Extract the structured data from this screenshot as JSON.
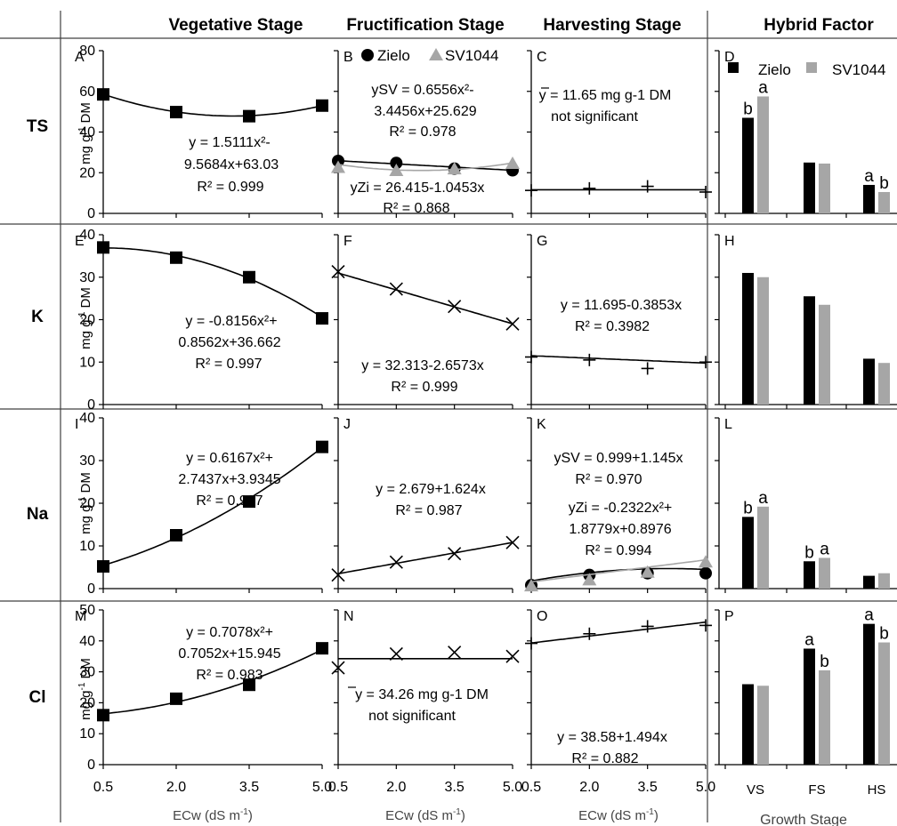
{
  "headers": {
    "columns": [
      "Vegetative Stage",
      "Fructification Stage",
      "Harvesting Stage",
      "Hybrid Factor"
    ],
    "rows": [
      "TS",
      "K",
      "Na",
      "Cl"
    ]
  },
  "axes": {
    "ylabel_main": "mg g",
    "ylabel_sup": "-1",
    "ylabel_tail": " DM",
    "xlabel_main": "ECw (dS m",
    "xlabel_sup": "-1",
    "xlabel_tail": ")",
    "x_ticks": [
      "0.5",
      "2.0",
      "3.5",
      "5.0"
    ],
    "hybrid_xlabel": "Growth Stage",
    "hybrid_ticks": [
      "VS",
      "FS",
      "HS"
    ]
  },
  "legend": {
    "zielo": "Zielo",
    "sv1044": "SV1044"
  },
  "colors": {
    "zielo": "#000000",
    "sv1044": "#a6a6a6",
    "axis": "#000000",
    "frame": "#404040"
  },
  "chart_data": [
    {
      "panel": "A",
      "row": "TS",
      "stage": "Vegetative Stage",
      "type": "scatter",
      "ylim": [
        0,
        80
      ],
      "yticks": [
        0,
        20,
        40,
        60,
        80
      ],
      "x": [
        0.5,
        2.0,
        3.5,
        5.0
      ],
      "series": [
        {
          "marker": "square",
          "values": [
            58.5,
            49.8,
            47.8,
            53.0
          ],
          "fit": "quad",
          "coef": [
            63.03,
            -9.5684,
            1.5111
          ]
        }
      ],
      "annotations": [
        "y = 1.5111x²-",
        "9.5684x+63.03",
        "R² = 0.999"
      ]
    },
    {
      "panel": "B",
      "row": "TS",
      "stage": "Fructification Stage",
      "type": "scatter",
      "ylim": [
        0,
        80
      ],
      "x": [
        0.5,
        2.0,
        3.5,
        5.0
      ],
      "series": [
        {
          "name": "Zielo",
          "marker": "circle",
          "values": [
            25.8,
            24.8,
            22.0,
            21.2
          ],
          "fit": "lin",
          "coef": [
            26.415,
            -1.0453
          ]
        },
        {
          "name": "SV1044",
          "marker": "triangle",
          "values": [
            22.5,
            21.0,
            21.8,
            24.5
          ],
          "fit": "quad",
          "coef": [
            25.629,
            -3.4456,
            0.6556
          ]
        }
      ],
      "annotations": [
        "ySV = 0.6556x²-",
        "3.4456x+25.629",
        "R² = 0.978",
        "yZi = 26.415-1.0453x",
        "R² = 0.868"
      ]
    },
    {
      "panel": "C",
      "row": "TS",
      "stage": "Harvesting Stage",
      "type": "scatter",
      "ylim": [
        0,
        80
      ],
      "x": [
        0.5,
        2.0,
        3.5,
        5.0
      ],
      "series": [
        {
          "marker": "plus",
          "values": [
            11.3,
            12.3,
            13.3,
            10.5
          ],
          "fit": "const",
          "coef": [
            11.65
          ]
        }
      ],
      "annotations": [
        "y = 11.65 mg g-1 DM",
        "not significant"
      ]
    },
    {
      "panel": "D",
      "row": "TS",
      "stage": "Hybrid Factor",
      "type": "bar",
      "ylim": [
        0,
        80
      ],
      "categories": [
        "VS",
        "FS",
        "HS"
      ],
      "series": [
        {
          "name": "Zielo",
          "values": [
            47.0,
            25.0,
            14.0
          ],
          "letters": [
            "b",
            "",
            "a"
          ]
        },
        {
          "name": "SV1044",
          "values": [
            57.5,
            24.5,
            10.5
          ],
          "letters": [
            "a",
            "",
            "b"
          ]
        }
      ]
    },
    {
      "panel": "E",
      "row": "K",
      "stage": "Vegetative Stage",
      "type": "scatter",
      "ylim": [
        0,
        40
      ],
      "yticks": [
        0,
        10,
        20,
        30,
        40
      ],
      "x": [
        0.5,
        2.0,
        3.5,
        5.0
      ],
      "series": [
        {
          "marker": "square",
          "values": [
            37.0,
            34.6,
            30.0,
            20.3
          ],
          "fit": "quad",
          "coef": [
            36.662,
            0.8562,
            -0.8156
          ]
        }
      ],
      "annotations": [
        "y = -0.8156x²+",
        "0.8562x+36.662",
        "R² = 0.997"
      ]
    },
    {
      "panel": "F",
      "row": "K",
      "stage": "Fructification Stage",
      "type": "scatter",
      "ylim": [
        0,
        40
      ],
      "x": [
        0.5,
        2.0,
        3.5,
        5.0
      ],
      "series": [
        {
          "marker": "x",
          "values": [
            31.3,
            27.2,
            23.1,
            19.0
          ],
          "fit": "lin",
          "coef": [
            32.313,
            -2.6573
          ]
        }
      ],
      "annotations": [
        "y = 32.313-2.6573x",
        "R² = 0.999"
      ]
    },
    {
      "panel": "G",
      "row": "K",
      "stage": "Harvesting Stage",
      "type": "scatter",
      "ylim": [
        0,
        40
      ],
      "x": [
        0.5,
        2.0,
        3.5,
        5.0
      ],
      "series": [
        {
          "marker": "plus",
          "values": [
            11.2,
            10.5,
            8.5,
            10.0
          ],
          "fit": "lin",
          "coef": [
            11.695,
            -0.3853
          ]
        }
      ],
      "annotations": [
        "y = 11.695-0.3853x",
        "R² = 0.3982"
      ]
    },
    {
      "panel": "H",
      "row": "K",
      "stage": "Hybrid Factor",
      "type": "bar",
      "ylim": [
        0,
        40
      ],
      "categories": [
        "VS",
        "FS",
        "HS"
      ],
      "series": [
        {
          "name": "Zielo",
          "values": [
            31.0,
            25.5,
            10.8
          ]
        },
        {
          "name": "SV1044",
          "values": [
            30.0,
            23.5,
            9.8
          ]
        }
      ]
    },
    {
      "panel": "I",
      "row": "Na",
      "stage": "Vegetative Stage",
      "type": "scatter",
      "ylim": [
        0,
        40
      ],
      "yticks": [
        0,
        10,
        20,
        30,
        40
      ],
      "x": [
        0.5,
        2.0,
        3.5,
        5.0
      ],
      "series": [
        {
          "marker": "square",
          "values": [
            5.2,
            12.5,
            20.4,
            33.2
          ],
          "fit": "quad",
          "coef": [
            3.9345,
            2.7437,
            0.6167
          ]
        }
      ],
      "annotations": [
        "y = 0.6167x²+",
        "2.7437x+3.9345",
        "R² = 0.997"
      ]
    },
    {
      "panel": "J",
      "row": "Na",
      "stage": "Fructification Stage",
      "type": "scatter",
      "ylim": [
        0,
        40
      ],
      "x": [
        0.5,
        2.0,
        3.5,
        5.0
      ],
      "series": [
        {
          "marker": "x",
          "values": [
            3.2,
            6.2,
            8.2,
            10.8
          ],
          "fit": "lin",
          "coef": [
            2.679,
            1.624
          ]
        }
      ],
      "annotations": [
        "y = 2.679+1.624x",
        "R² = 0.987"
      ]
    },
    {
      "panel": "K",
      "row": "Na",
      "stage": "Harvesting Stage",
      "type": "scatter",
      "ylim": [
        0,
        40
      ],
      "x": [
        0.5,
        2.0,
        3.5,
        5.0
      ],
      "series": [
        {
          "name": "Zielo",
          "marker": "circle",
          "values": [
            0.8,
            3.2,
            3.6,
            3.6
          ],
          "fit": "quad",
          "coef": [
            0.8976,
            1.8779,
            -0.2322
          ]
        },
        {
          "name": "SV1044",
          "marker": "triangle",
          "values": [
            0.6,
            2.0,
            3.8,
            6.2
          ],
          "fit": "lin",
          "coef": [
            0.999,
            1.145
          ]
        }
      ],
      "annotations": [
        "ySV = 0.999+1.145x",
        "R² = 0.970",
        "yZi = -0.2322x²+",
        "1.8779x+0.8976",
        "R² = 0.994"
      ]
    },
    {
      "panel": "L",
      "row": "Na",
      "stage": "Hybrid Factor",
      "type": "bar",
      "ylim": [
        0,
        40
      ],
      "categories": [
        "VS",
        "FS",
        "HS"
      ],
      "series": [
        {
          "name": "Zielo",
          "values": [
            16.8,
            6.4,
            3.0
          ],
          "letters": [
            "b",
            "b",
            ""
          ]
        },
        {
          "name": "SV1044",
          "values": [
            19.2,
            7.2,
            3.6
          ],
          "letters": [
            "a",
            "a",
            ""
          ]
        }
      ]
    },
    {
      "panel": "M",
      "row": "Cl",
      "stage": "Vegetative Stage",
      "type": "scatter",
      "ylim": [
        0,
        50
      ],
      "yticks": [
        0,
        10,
        20,
        30,
        40,
        50
      ],
      "x": [
        0.5,
        2.0,
        3.5,
        5.0
      ],
      "series": [
        {
          "marker": "square",
          "values": [
            16.0,
            21.3,
            25.8,
            37.6
          ],
          "fit": "quad",
          "coef": [
            15.945,
            0.7052,
            0.7078
          ]
        }
      ],
      "annotations": [
        "y = 0.7078x²+",
        "0.7052x+15.945",
        "R² = 0.983"
      ]
    },
    {
      "panel": "N",
      "row": "Cl",
      "stage": "Fructification Stage",
      "type": "scatter",
      "ylim": [
        0,
        50
      ],
      "x": [
        0.5,
        2.0,
        3.5,
        5.0
      ],
      "series": [
        {
          "marker": "x",
          "values": [
            31.3,
            35.8,
            36.3,
            35.0
          ],
          "fit": "const",
          "coef": [
            34.26
          ]
        }
      ],
      "annotations": [
        "y = 34.26 mg g-1 DM",
        "not significant"
      ]
    },
    {
      "panel": "O",
      "row": "Cl",
      "stage": "Harvesting Stage",
      "type": "scatter",
      "ylim": [
        0,
        50
      ],
      "x": [
        0.5,
        2.0,
        3.5,
        5.0
      ],
      "series": [
        {
          "marker": "plus",
          "values": [
            39.2,
            42.3,
            44.7,
            45.0
          ],
          "fit": "lin",
          "coef": [
            38.58,
            1.494
          ]
        }
      ],
      "annotations": [
        "y = 38.58+1.494x",
        "R² = 0.882"
      ]
    },
    {
      "panel": "P",
      "row": "Cl",
      "stage": "Hybrid Factor",
      "type": "bar",
      "ylim": [
        0,
        50
      ],
      "categories": [
        "VS",
        "FS",
        "HS"
      ],
      "series": [
        {
          "name": "Zielo",
          "values": [
            26.0,
            37.5,
            45.5
          ],
          "letters": [
            "",
            "a",
            "a"
          ]
        },
        {
          "name": "SV1044",
          "values": [
            25.5,
            30.5,
            39.5
          ],
          "letters": [
            "",
            "b",
            "b"
          ]
        }
      ]
    }
  ]
}
